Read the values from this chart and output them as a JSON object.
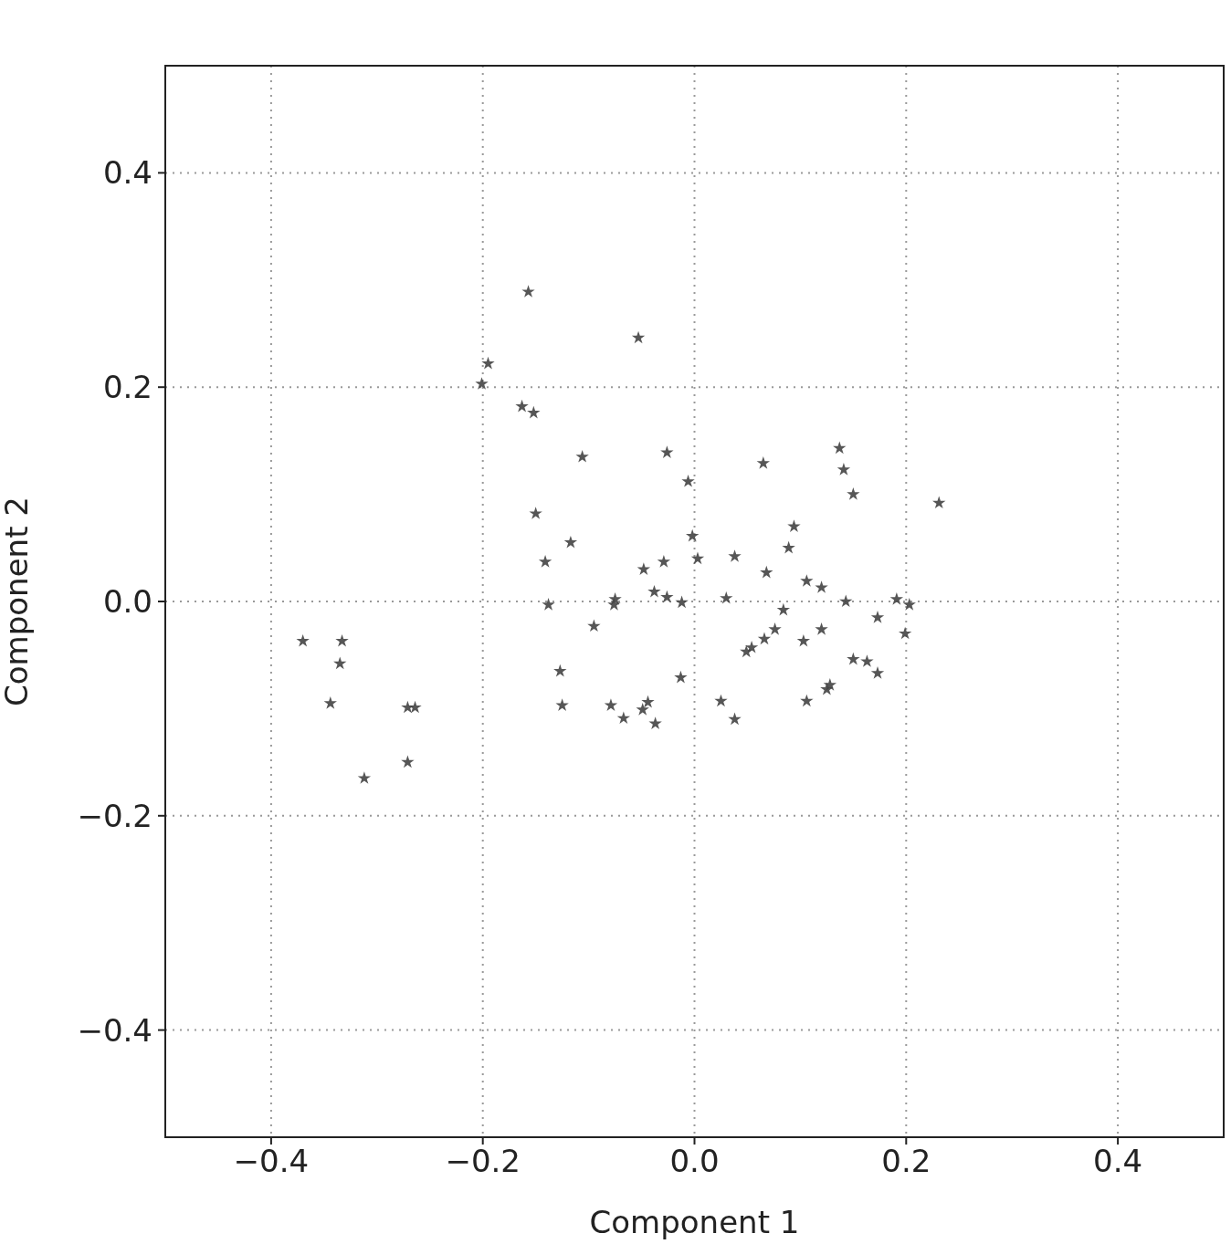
{
  "chart_data": {
    "type": "scatter",
    "xlabel": "Component 1",
    "ylabel": "Component 2",
    "xlim": [
      -0.5,
      0.5
    ],
    "ylim": [
      -0.5,
      0.5
    ],
    "xticks": [
      {
        "value": -0.4,
        "label": "−0.4"
      },
      {
        "value": -0.2,
        "label": "−0.2"
      },
      {
        "value": 0,
        "label": "0.0"
      },
      {
        "value": 0.2,
        "label": "0.2"
      },
      {
        "value": 0.4,
        "label": "0.4"
      }
    ],
    "yticks": [
      {
        "value": -0.4,
        "label": "−0.4"
      },
      {
        "value": -0.2,
        "label": "−0.2"
      },
      {
        "value": 0,
        "label": "0.0"
      },
      {
        "value": 0.2,
        "label": "0.2"
      },
      {
        "value": 0.4,
        "label": "0.4"
      }
    ],
    "grid": true,
    "marker": "star",
    "series": [
      {
        "color": "#444444",
        "x": [
          -0.157,
          -0.053,
          -0.195,
          -0.201,
          -0.163,
          -0.152,
          -0.106,
          -0.026,
          -0.006,
          0.065,
          0.137,
          0.141,
          0.15,
          0.231,
          -0.15,
          -0.117,
          -0.141,
          -0.138,
          -0.002,
          0.003,
          -0.048,
          -0.029,
          -0.038,
          -0.026,
          -0.012,
          -0.075,
          -0.076,
          -0.095,
          0.038,
          0.03,
          0.068,
          0.094,
          0.089,
          0.106,
          0.12,
          0.143,
          0.084,
          0.076,
          0.066,
          0.054,
          0.049,
          0.103,
          0.12,
          0.106,
          0.125,
          0.128,
          0.15,
          0.163,
          0.173,
          0.173,
          0.191,
          0.203,
          0.199,
          -0.013,
          0.025,
          0.038,
          -0.079,
          -0.067,
          -0.049,
          -0.044,
          -0.037,
          -0.127,
          -0.125,
          -0.37,
          -0.333,
          -0.335,
          -0.344,
          -0.271,
          -0.264,
          -0.271,
          -0.312
        ],
        "values": [
          0.289,
          0.246,
          0.222,
          0.203,
          0.182,
          0.176,
          0.135,
          0.139,
          0.112,
          0.129,
          0.143,
          0.123,
          0.1,
          0.092,
          0.082,
          0.055,
          0.037,
          -0.003,
          0.061,
          0.04,
          0.03,
          0.037,
          0.009,
          0.004,
          -0.001,
          0.002,
          -0.003,
          -0.023,
          0.042,
          0.003,
          0.027,
          0.07,
          0.05,
          0.019,
          0.013,
          0.0,
          -0.008,
          -0.026,
          -0.035,
          -0.043,
          -0.047,
          -0.037,
          -0.026,
          -0.093,
          -0.082,
          -0.078,
          -0.054,
          -0.056,
          -0.067,
          -0.015,
          0.002,
          -0.003,
          -0.03,
          -0.071,
          -0.093,
          -0.11,
          -0.097,
          -0.109,
          -0.101,
          -0.094,
          -0.114,
          -0.065,
          -0.097,
          -0.037,
          -0.037,
          -0.058,
          -0.095,
          -0.099,
          -0.099,
          -0.15,
          -0.165
        ]
      }
    ]
  }
}
